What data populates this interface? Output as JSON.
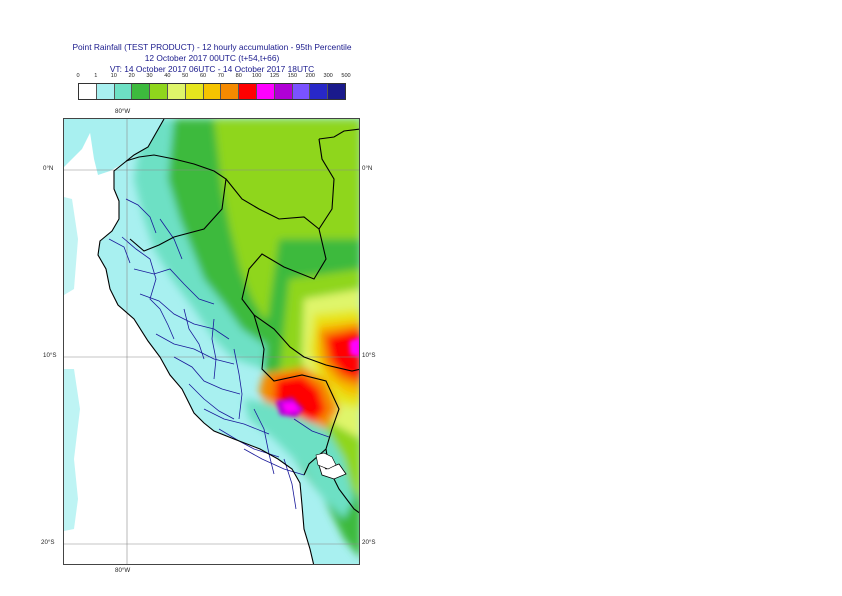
{
  "title": {
    "line1": "Point Rainfall (TEST PRODUCT) - 12 hourly accumulation - 95th Percentile",
    "line2": "12 October 2017 00UTC (t+54,t+66)",
    "line3": "VT: 14 October 2017 06UTC - 14 October 2017 18UTC"
  },
  "legend": {
    "labels": [
      "0",
      "1",
      "10",
      "20",
      "30",
      "40",
      "50",
      "60",
      "70",
      "80",
      "100",
      "125",
      "150",
      "200",
      "300",
      "500"
    ],
    "colors": [
      "#ffffff",
      "#a8f0f0",
      "#6de0c4",
      "#3dba3d",
      "#8fd61c",
      "#dff56a",
      "#e6e61e",
      "#f5c400",
      "#f58a00",
      "#ff0000",
      "#ff00ff",
      "#b000d6",
      "#7a52ff",
      "#2828c8",
      "#1a1a8c"
    ]
  },
  "map": {
    "lon_labels": [
      "80°W",
      "80°W"
    ],
    "lat_labels_left": [
      "0°N",
      "10°S",
      "20°S"
    ],
    "lat_labels_right": [
      "0°N",
      "10°S",
      "20°S"
    ],
    "colors": {
      "ocean": "#ffffff",
      "light_cyan": "#a8f0f0",
      "teal": "#6de0c4",
      "green": "#3dba3d",
      "yellow_green": "#8fd61c",
      "light_yellow": "#dff56a",
      "yellow": "#e6e61e",
      "orange": "#f5c400",
      "dark_orange": "#f58a00",
      "red": "#ff0000",
      "magenta": "#ff00ff",
      "purple": "#b000d6",
      "border": "#000000",
      "admin": "#1a1a9a",
      "grid": "#8a8a8a"
    }
  }
}
